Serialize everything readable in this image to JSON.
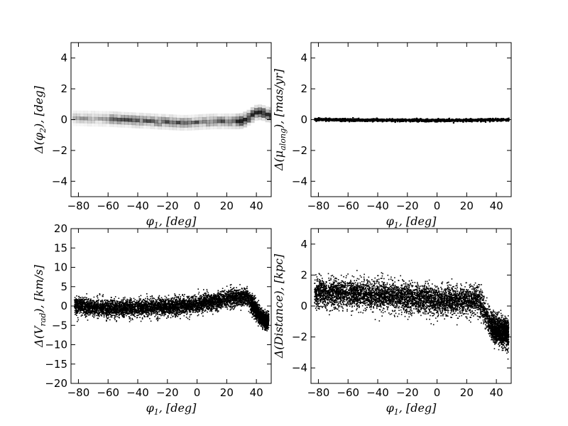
{
  "chart_data": [
    {
      "type": "heatmap",
      "panel": "top-left",
      "xlabel": "$\\phi_1, [deg]$",
      "ylabel": "$\\Delta(\\phi_2), [deg]$",
      "xlim": [
        -85,
        50
      ],
      "ylim": [
        -5,
        5
      ],
      "xticks": [
        -80,
        -60,
        -40,
        -20,
        0,
        20,
        40
      ],
      "yticks": [
        -4,
        -2,
        0,
        2,
        4
      ],
      "trend": {
        "x": [
          -83,
          -60,
          -40,
          -20,
          -10,
          0,
          10,
          20,
          28,
          33,
          38,
          42,
          46,
          50
        ],
        "y": [
          0.1,
          0.05,
          -0.05,
          -0.15,
          -0.2,
          -0.15,
          -0.1,
          -0.1,
          -0.1,
          0.1,
          0.45,
          0.5,
          0.35,
          0.3
        ]
      },
      "spread": 0.2
    },
    {
      "type": "scatter",
      "panel": "top-right",
      "xlabel": "$\\phi_1, [deg]$",
      "ylabel": "$\\Delta(\\mu_{along}), [mas/yr]$",
      "xlim": [
        -85,
        50
      ],
      "ylim": [
        -5,
        5
      ],
      "xticks": [
        -80,
        -60,
        -40,
        -20,
        0,
        20,
        40
      ],
      "yticks": [
        -4,
        -2,
        0,
        2,
        4
      ],
      "trend": {
        "x": [
          -83,
          -40,
          0,
          30,
          40,
          50
        ],
        "y": [
          0.05,
          0.02,
          0.0,
          0.02,
          0.05,
          0.05
        ]
      },
      "spread": 0.04
    },
    {
      "type": "scatter",
      "panel": "bottom-left",
      "xlabel": "$\\phi_1, [deg]$",
      "ylabel": "$\\Delta(V_{rad}), [km/s]$",
      "xlim": [
        -85,
        50
      ],
      "ylim": [
        -20,
        20
      ],
      "xticks": [
        -80,
        -60,
        -40,
        -20,
        0,
        20,
        40
      ],
      "yticks": [
        -20,
        -15,
        -10,
        -5,
        0,
        5,
        10,
        15,
        20
      ],
      "trend": {
        "x": [
          -83,
          -60,
          -40,
          -20,
          0,
          20,
          33,
          38,
          42,
          46,
          50
        ],
        "y": [
          0.2,
          -0.5,
          -0.3,
          0.0,
          0.5,
          2.0,
          2.5,
          0.0,
          -2.5,
          -4.0,
          -2.5
        ]
      },
      "spread": 1.1
    },
    {
      "type": "scatter",
      "panel": "bottom-right",
      "xlabel": "$\\phi_1, [deg]$",
      "ylabel": "$\\Delta(Distance), [kpc]$",
      "xlim": [
        -85,
        50
      ],
      "ylim": [
        -5,
        5
      ],
      "xticks": [
        -80,
        -60,
        -40,
        -20,
        0,
        20,
        40
      ],
      "yticks": [
        -4,
        -2,
        0,
        2,
        4
      ],
      "trend": {
        "x": [
          -83,
          -60,
          -40,
          -20,
          0,
          20,
          28,
          32,
          36,
          40,
          45,
          50
        ],
        "y": [
          0.9,
          0.85,
          0.75,
          0.6,
          0.4,
          0.4,
          0.5,
          -0.5,
          -1.2,
          -1.5,
          -1.7,
          -1.8
        ]
      },
      "spread": 0.45
    }
  ]
}
